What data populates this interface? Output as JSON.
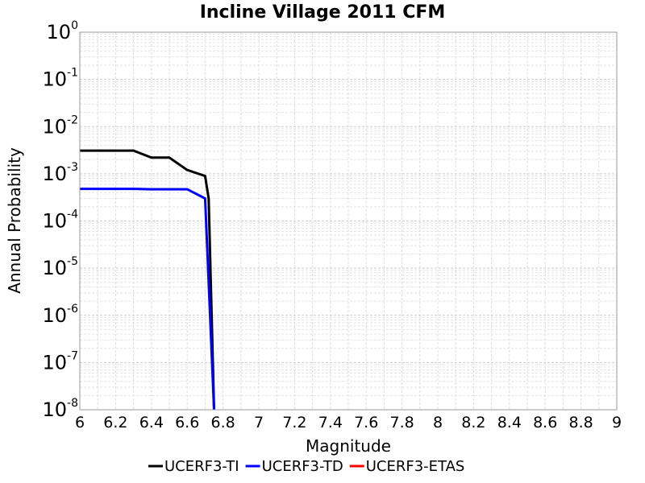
{
  "chart_data": {
    "type": "line",
    "title": "Incline Village 2011 CFM",
    "xlabel": "Magnitude",
    "ylabel": "Annual Probability",
    "xlim": [
      6,
      9
    ],
    "ylim": [
      1e-08,
      1
    ],
    "yscale": "log",
    "grid": true,
    "legend_position": "bottom",
    "x_ticks": [
      "6",
      "6.2",
      "6.4",
      "6.6",
      "6.8",
      "7",
      "7.2",
      "7.4",
      "7.6",
      "7.8",
      "8",
      "8.2",
      "8.4",
      "8.6",
      "8.8",
      "9"
    ],
    "y_tick_bases": [
      "10",
      "10",
      "10",
      "10",
      "10",
      "10",
      "10",
      "10",
      "10"
    ],
    "y_tick_exponents": [
      "0",
      "-1",
      "-2",
      "-3",
      "-4",
      "-5",
      "-6",
      "-7",
      "-8"
    ],
    "series": [
      {
        "name": "UCERF3-TI",
        "color": "#000000",
        "x": [
          6.0,
          6.1,
          6.2,
          6.3,
          6.4,
          6.5,
          6.6,
          6.7,
          6.72,
          6.75
        ],
        "y": [
          0.0031,
          0.0031,
          0.0031,
          0.0031,
          0.0022,
          0.0022,
          0.0012,
          0.0009,
          0.0003,
          1e-08
        ]
      },
      {
        "name": "UCERF3-TD",
        "color": "#0000ff",
        "x": [
          6.0,
          6.1,
          6.2,
          6.3,
          6.4,
          6.5,
          6.6,
          6.7,
          6.75
        ],
        "y": [
          0.00048,
          0.00048,
          0.00048,
          0.00048,
          0.00047,
          0.00047,
          0.00047,
          0.0003,
          1e-08
        ]
      },
      {
        "name": "UCERF3-ETAS",
        "color": "#ff0000",
        "x": [],
        "y": []
      }
    ]
  }
}
